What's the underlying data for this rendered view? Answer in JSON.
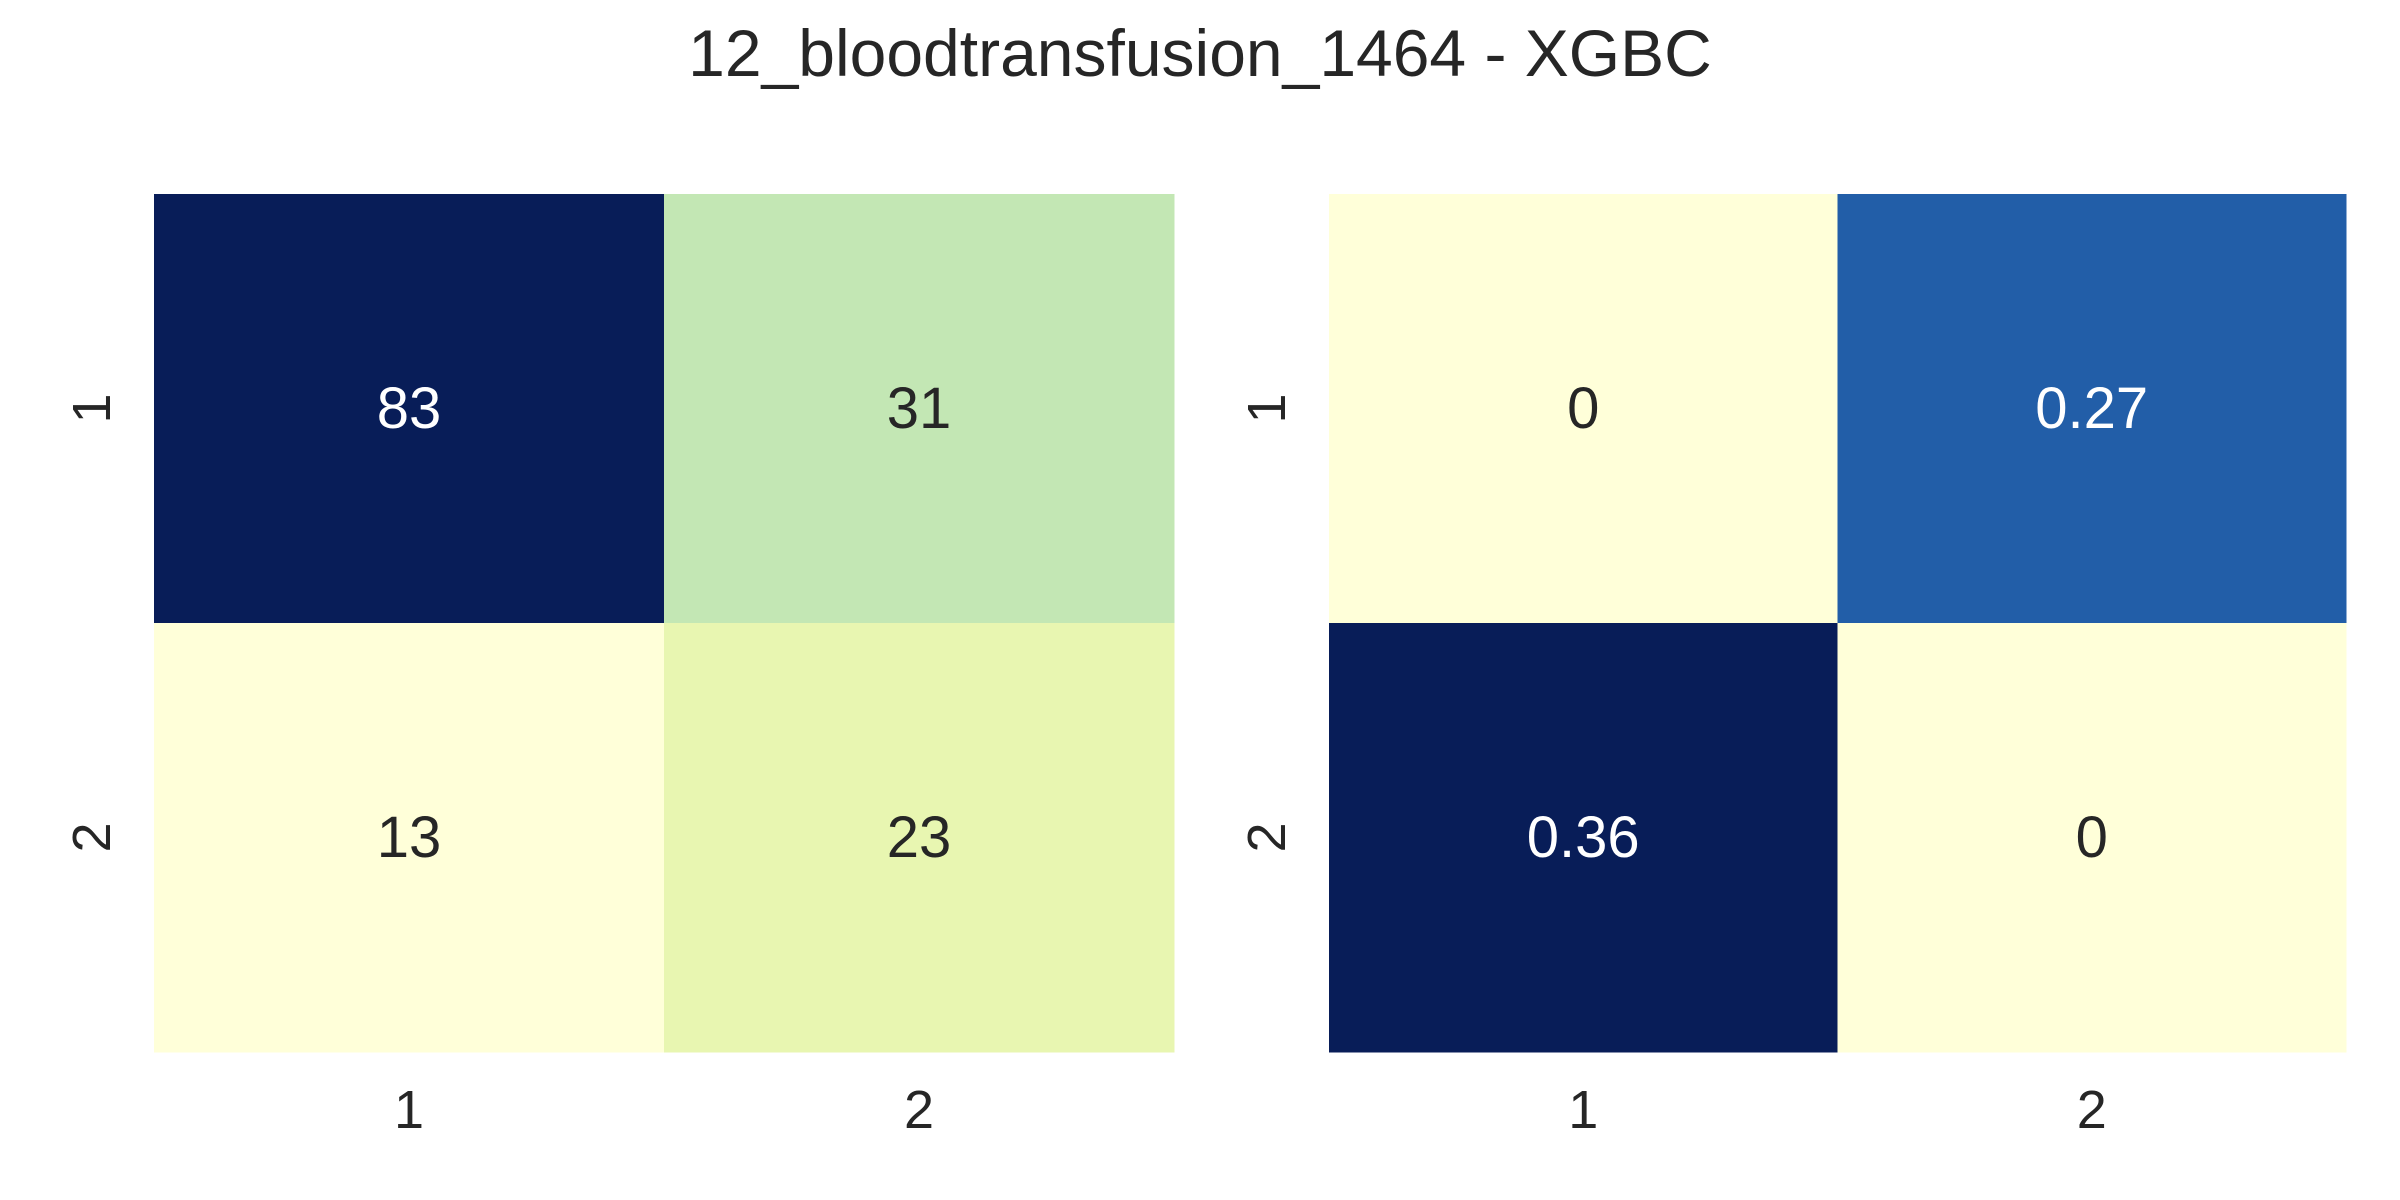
{
  "chart_data": {
    "title": "12_bloodtransfusion_1464 - XGBC",
    "charts": [
      {
        "type": "heatmap",
        "row_labels": [
          "1",
          "2"
        ],
        "col_labels": [
          "1",
          "2"
        ],
        "values": [
          [
            83,
            31
          ],
          [
            13,
            23
          ]
        ],
        "value_labels": [
          [
            "83",
            "31"
          ],
          [
            "13",
            "23"
          ]
        ],
        "colormap": "YlGnBu",
        "vmin": 13,
        "vmax": 83
      },
      {
        "type": "heatmap",
        "row_labels": [
          "1",
          "2"
        ],
        "col_labels": [
          "1",
          "2"
        ],
        "values": [
          [
            0,
            0.27
          ],
          [
            0.36,
            0
          ]
        ],
        "value_labels": [
          [
            "0",
            "0.27"
          ],
          [
            "0.36",
            "0"
          ]
        ],
        "colormap": "YlGnBu",
        "vmin": 0,
        "vmax": 0.36
      }
    ],
    "grid": false,
    "legend": "none"
  }
}
